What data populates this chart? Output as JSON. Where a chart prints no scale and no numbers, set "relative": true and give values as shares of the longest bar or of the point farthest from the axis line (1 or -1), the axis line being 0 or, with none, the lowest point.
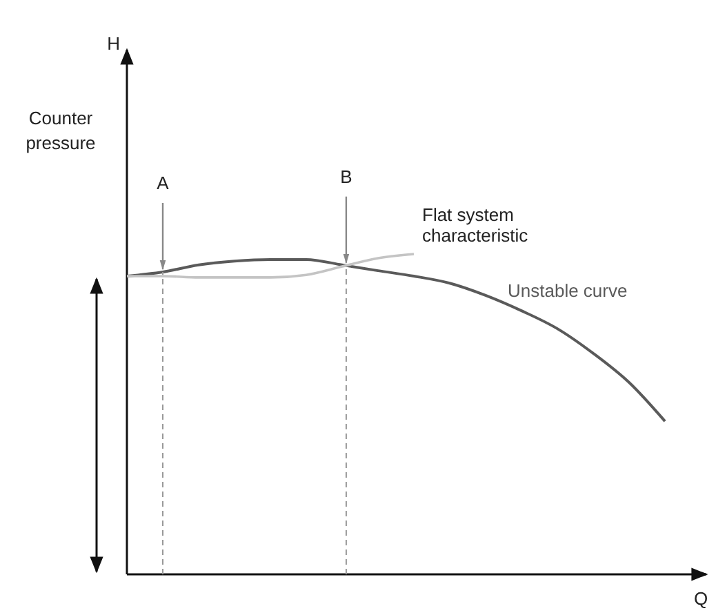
{
  "chart_data": {
    "type": "line",
    "relative": true,
    "xlabel": "Q",
    "line_style": "solid",
    "categories": [
      null,
      null,
      null,
      null,
      null,
      null,
      null,
      null,
      null,
      null,
      null,
      null,
      null,
      null,
      null,
      null
    ],
    "series": [
      {
        "name": "Unstable curve",
        "color": "#5a5a5a",
        "values": [
          0.931,
          0.944,
          0.966,
          0.978,
          0.983,
          0.983,
          0.966,
          0.948,
          0.931,
          0.909,
          0.871,
          0.823,
          0.767,
          0.69,
          0.599,
          0.478
        ]
      },
      {
        "name": "Flat system characteristic",
        "color": "#c4c4c4",
        "values": [
          0.931,
          0.931,
          0.927,
          0.927,
          0.927,
          0.935,
          0.961,
          0.987,
          1,
          null,
          null,
          null,
          null,
          null,
          null,
          null
        ]
      }
    ],
    "annotations": [
      "H",
      "Counter pressure",
      "A",
      "B"
    ]
  }
}
